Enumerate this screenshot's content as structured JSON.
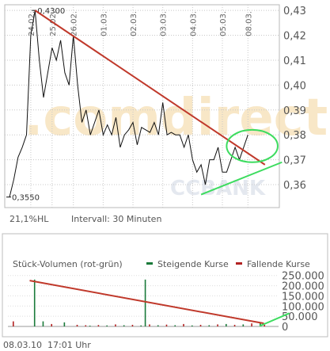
{
  "watermark": {
    "text": ".comdirect",
    "sub": "CCBANK"
  },
  "chart_data": [
    {
      "type": "line",
      "name": "price",
      "ylim": [
        0.353,
        0.431
      ],
      "y_ticks": [
        "0,43",
        "0,42",
        "0,41",
        "0,40",
        "0,39",
        "0,38",
        "0,37",
        "0,36"
      ],
      "y_tick_values": [
        0.43,
        0.42,
        0.41,
        0.4,
        0.39,
        0.38,
        0.37,
        0.36
      ],
      "date_labels": [
        {
          "label": "24.02.",
          "index": 5
        },
        {
          "label": "25.02.",
          "index": 10
        },
        {
          "label": "26.02.",
          "index": 15
        },
        {
          "label": "01.03.",
          "index": 22
        },
        {
          "label": "02.03.",
          "index": 29
        },
        {
          "label": "03.03.",
          "index": 36
        },
        {
          "label": "04.03.",
          "index": 43
        },
        {
          "label": "05.03.",
          "index": 50
        },
        {
          "label": "08.03.",
          "index": 56
        }
      ],
      "values": [
        0.355,
        0.362,
        0.371,
        0.375,
        0.38,
        0.42,
        0.43,
        0.41,
        0.395,
        0.405,
        0.415,
        0.41,
        0.418,
        0.405,
        0.4,
        0.42,
        0.4,
        0.385,
        0.39,
        0.38,
        0.385,
        0.39,
        0.38,
        0.384,
        0.38,
        0.387,
        0.375,
        0.38,
        0.382,
        0.385,
        0.376,
        0.383,
        0.382,
        0.381,
        0.385,
        0.38,
        0.393,
        0.38,
        0.381,
        0.38,
        0.38,
        0.375,
        0.38,
        0.37,
        0.365,
        0.368,
        0.36,
        0.37,
        0.37,
        0.375,
        0.365,
        0.365,
        0.37,
        0.375,
        0.37,
        0.375,
        0.38
      ],
      "annotations": [
        {
          "label": "0,4300",
          "value": 0.43,
          "index": 6
        },
        {
          "label": "0,3550",
          "value": 0.355,
          "index": 0
        }
      ],
      "footer_left": "21,1%HL",
      "footer_interval": "Intervall: 30 Minuten",
      "trendlines": [
        {
          "color": "#c0392b",
          "from": {
            "index": 6,
            "value": 0.43
          },
          "to": {
            "index": 60,
            "value": 0.368
          }
        },
        {
          "color": "#3ddc5f",
          "from": {
            "index": 45,
            "value": 0.356
          },
          "to": {
            "index": 64,
            "value": 0.369
          }
        }
      ],
      "ellipse": {
        "color": "#3ddc5f",
        "center_index": 57,
        "center_value": 0.3755,
        "rx_index": 5,
        "ry_value": 0.0065
      }
    },
    {
      "type": "bar",
      "name": "volume",
      "title": "Stück-Volumen (rot-grün)",
      "legend": [
        {
          "label": "Steigende Kurse",
          "color": "#1a7a3a"
        },
        {
          "label": "Fallende Kurse",
          "color": "#b22222"
        }
      ],
      "ylim": [
        0,
        280000
      ],
      "y_ticks": [
        "250.000",
        "200.000",
        "150.000",
        "100.000",
        "50.000",
        "0"
      ],
      "y_tick_values": [
        250000,
        200000,
        150000,
        100000,
        50000,
        0
      ],
      "bars": [
        {
          "index": 0,
          "value": 25000,
          "color": "#b22222"
        },
        {
          "index": 5,
          "value": 230000,
          "color": "#1a7a3a"
        },
        {
          "index": 7,
          "value": 25000,
          "color": "#1a7a3a"
        },
        {
          "index": 9,
          "value": 12000,
          "color": "#b22222"
        },
        {
          "index": 12,
          "value": 20000,
          "color": "#1a7a3a"
        },
        {
          "index": 15,
          "value": 8000,
          "color": "#b22222"
        },
        {
          "index": 17,
          "value": 6000,
          "color": "#b22222"
        },
        {
          "index": 18,
          "value": 4000,
          "color": "#1a7a3a"
        },
        {
          "index": 20,
          "value": 7000,
          "color": "#b22222"
        },
        {
          "index": 22,
          "value": 5000,
          "color": "#1a7a3a"
        },
        {
          "index": 24,
          "value": 10000,
          "color": "#b22222"
        },
        {
          "index": 26,
          "value": 6000,
          "color": "#1a7a3a"
        },
        {
          "index": 28,
          "value": 8000,
          "color": "#b22222"
        },
        {
          "index": 30,
          "value": 5000,
          "color": "#1a7a3a"
        },
        {
          "index": 31,
          "value": 230000,
          "color": "#1a7a3a"
        },
        {
          "index": 32,
          "value": 10000,
          "color": "#b22222"
        },
        {
          "index": 34,
          "value": 6000,
          "color": "#1a7a3a"
        },
        {
          "index": 36,
          "value": 9000,
          "color": "#b22222"
        },
        {
          "index": 38,
          "value": 6000,
          "color": "#1a7a3a"
        },
        {
          "index": 40,
          "value": 12000,
          "color": "#b22222"
        },
        {
          "index": 42,
          "value": 5000,
          "color": "#1a7a3a"
        },
        {
          "index": 44,
          "value": 8000,
          "color": "#b22222"
        },
        {
          "index": 46,
          "value": 6000,
          "color": "#1a7a3a"
        },
        {
          "index": 48,
          "value": 10000,
          "color": "#b22222"
        },
        {
          "index": 50,
          "value": 12000,
          "color": "#1a7a3a"
        },
        {
          "index": 52,
          "value": 8000,
          "color": "#b22222"
        },
        {
          "index": 54,
          "value": 10000,
          "color": "#1a7a3a"
        },
        {
          "index": 56,
          "value": 15000,
          "color": "#b22222"
        },
        {
          "index": 58,
          "value": 20000,
          "color": "#1a7a3a"
        },
        {
          "index": 59,
          "value": 8000,
          "color": "#b22222"
        }
      ],
      "trendlines": [
        {
          "color": "#c0392b",
          "from": {
            "index": 4,
            "value": 225000
          },
          "to": {
            "index": 59,
            "value": 15000
          }
        },
        {
          "color": "#3ddc5f",
          "from": {
            "index": 58,
            "value": 2000
          },
          "to": {
            "index": 65,
            "value": 65000
          }
        }
      ]
    }
  ],
  "footer": {
    "date": "08.03.10",
    "time": "17:01 Uhr"
  }
}
